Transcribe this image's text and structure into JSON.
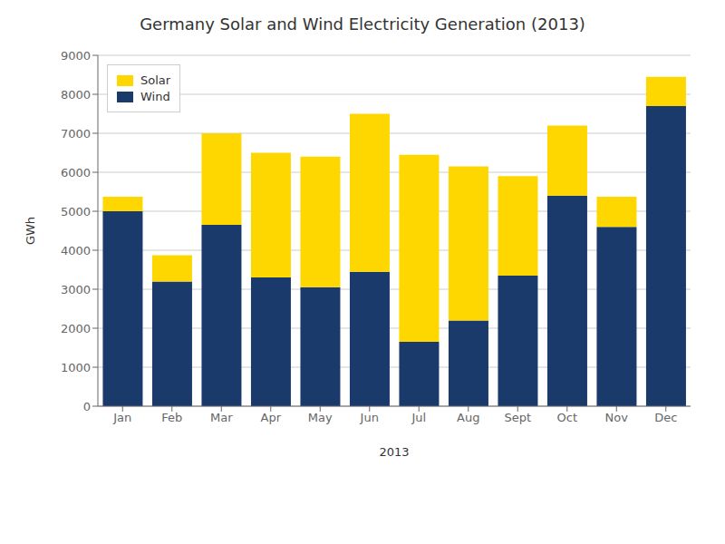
{
  "chart_data": {
    "type": "bar",
    "stacked": true,
    "title": "Germany Solar and Wind Electricity Generation (2013)",
    "xlabel": "2013",
    "ylabel": "GWh",
    "categories": [
      "Jan",
      "Feb",
      "Mar",
      "Apr",
      "May",
      "Jun",
      "Jul",
      "Aug",
      "Sept",
      "Oct",
      "Nov",
      "Dec"
    ],
    "series": [
      {
        "name": "Wind",
        "color": "#1a3a6b",
        "values": [
          5000,
          3200,
          4650,
          3300,
          3050,
          3450,
          1650,
          2200,
          3350,
          5400,
          4600,
          7700
        ]
      },
      {
        "name": "Solar",
        "color": "#FFD700",
        "values": [
          375,
          675,
          2350,
          3200,
          3350,
          4050,
          4800,
          3950,
          2550,
          1800,
          775,
          750
        ]
      }
    ],
    "ylim": [
      0,
      9000
    ],
    "yticks": [
      0,
      1000,
      2000,
      3000,
      4000,
      5000,
      6000,
      7000,
      8000,
      9000
    ],
    "grid": true,
    "legend": "upper left"
  }
}
